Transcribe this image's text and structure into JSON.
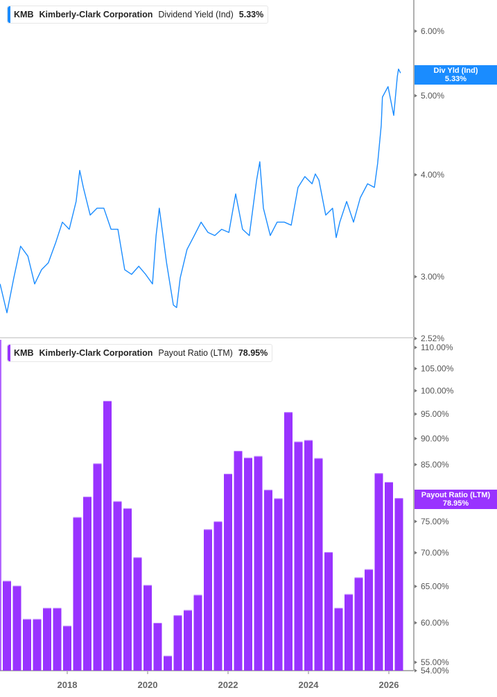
{
  "colors": {
    "yield_line": "#1a8cff",
    "payout_bars": "#9933ff",
    "axis": "#b0b0b0",
    "tick_text": "#555555"
  },
  "top_legend": {
    "ticker": "KMB",
    "company": "Kimberly-Clark Corporation",
    "metric": "Dividend Yield (Ind)",
    "value": "5.33%"
  },
  "bottom_legend": {
    "ticker": "KMB",
    "company": "Kimberly-Clark Corporation",
    "metric": "Payout Ratio (LTM)",
    "value": "78.95%"
  },
  "top_badge": {
    "label": "Div Yld (Ind)",
    "value": "5.33%"
  },
  "bottom_badge": {
    "label": "Payout Ratio (LTM)",
    "value": "78.95%"
  },
  "chart_data": [
    {
      "type": "line",
      "series_name": "Dividend Yield (Ind)",
      "y_scale": "log",
      "ylim": [
        2.52,
        6.4
      ],
      "xlim": [
        2016.33,
        2026.6
      ],
      "y_ticks": [
        {
          "v": 6.0,
          "label": "6.00%"
        },
        {
          "v": 5.0,
          "label": "5.00%"
        },
        {
          "v": 4.0,
          "label": "4.00%"
        },
        {
          "v": 3.0,
          "label": "3.00%"
        },
        {
          "v": 2.52,
          "label": "2.52%"
        }
      ],
      "grid": false,
      "points": [
        [
          2016.33,
          2.94
        ],
        [
          2016.5,
          2.71
        ],
        [
          2016.67,
          2.99
        ],
        [
          2016.84,
          3.27
        ],
        [
          2017.02,
          3.18
        ],
        [
          2017.19,
          2.94
        ],
        [
          2017.36,
          3.06
        ],
        [
          2017.53,
          3.12
        ],
        [
          2017.71,
          3.3
        ],
        [
          2017.88,
          3.5
        ],
        [
          2018.05,
          3.43
        ],
        [
          2018.22,
          3.71
        ],
        [
          2018.31,
          4.05
        ],
        [
          2018.4,
          3.86
        ],
        [
          2018.57,
          3.57
        ],
        [
          2018.74,
          3.64
        ],
        [
          2018.91,
          3.64
        ],
        [
          2019.09,
          3.43
        ],
        [
          2019.26,
          3.43
        ],
        [
          2019.43,
          3.06
        ],
        [
          2019.6,
          3.02
        ],
        [
          2019.78,
          3.09
        ],
        [
          2019.95,
          3.02
        ],
        [
          2020.12,
          2.94
        ],
        [
          2020.21,
          3.37
        ],
        [
          2020.29,
          3.64
        ],
        [
          2020.47,
          3.12
        ],
        [
          2020.64,
          2.77
        ],
        [
          2020.72,
          2.75
        ],
        [
          2020.81,
          2.99
        ],
        [
          2020.98,
          3.24
        ],
        [
          2021.16,
          3.37
        ],
        [
          2021.33,
          3.5
        ],
        [
          2021.5,
          3.4
        ],
        [
          2021.67,
          3.37
        ],
        [
          2021.84,
          3.43
        ],
        [
          2022.02,
          3.4
        ],
        [
          2022.19,
          3.79
        ],
        [
          2022.36,
          3.43
        ],
        [
          2022.53,
          3.37
        ],
        [
          2022.71,
          3.94
        ],
        [
          2022.79,
          4.15
        ],
        [
          2022.88,
          3.64
        ],
        [
          2023.05,
          3.37
        ],
        [
          2023.22,
          3.5
        ],
        [
          2023.4,
          3.5
        ],
        [
          2023.57,
          3.47
        ],
        [
          2023.74,
          3.86
        ],
        [
          2023.91,
          3.98
        ],
        [
          2024.09,
          3.9
        ],
        [
          2024.17,
          4.01
        ],
        [
          2024.26,
          3.94
        ],
        [
          2024.43,
          3.57
        ],
        [
          2024.6,
          3.64
        ],
        [
          2024.69,
          3.35
        ],
        [
          2024.78,
          3.5
        ],
        [
          2024.95,
          3.71
        ],
        [
          2025.12,
          3.5
        ],
        [
          2025.29,
          3.75
        ],
        [
          2025.47,
          3.9
        ],
        [
          2025.64,
          3.86
        ],
        [
          2025.72,
          4.13
        ],
        [
          2025.81,
          4.6
        ],
        [
          2025.84,
          4.98
        ],
        [
          2025.98,
          5.13
        ],
        [
          2026.12,
          4.73
        ],
        [
          2026.21,
          5.28
        ],
        [
          2026.24,
          5.39
        ],
        [
          2026.29,
          5.33
        ]
      ]
    },
    {
      "type": "bar",
      "series_name": "Payout Ratio (LTM)",
      "y_scale": "log",
      "ylim": [
        54,
        112
      ],
      "xlim": [
        2016.33,
        2026.6
      ],
      "x_ticks": [
        {
          "v": 2018,
          "label": "2018"
        },
        {
          "v": 2020,
          "label": "2020"
        },
        {
          "v": 2022,
          "label": "2022"
        },
        {
          "v": 2024,
          "label": "2024"
        },
        {
          "v": 2026,
          "label": "2026"
        }
      ],
      "y_ticks": [
        {
          "v": 110,
          "label": "110.00%"
        },
        {
          "v": 105,
          "label": "105.00%"
        },
        {
          "v": 100,
          "label": "100.00%"
        },
        {
          "v": 95,
          "label": "95.00%"
        },
        {
          "v": 90,
          "label": "90.00%"
        },
        {
          "v": 85,
          "label": "85.00%"
        },
        {
          "v": 75,
          "label": "75.00%"
        },
        {
          "v": 70,
          "label": "70.00%"
        },
        {
          "v": 65,
          "label": "65.00%"
        },
        {
          "v": 60,
          "label": "60.00%"
        },
        {
          "v": 55,
          "label": "55.00%"
        },
        {
          "v": 54,
          "label": "54.00%"
        }
      ],
      "grid": false,
      "first_period": 2016.5,
      "period_years": 0.25,
      "values": [
        65.8,
        65.1,
        60.5,
        60.5,
        62.0,
        62.0,
        59.6,
        75.7,
        79.2,
        85.2,
        97.8,
        78.4,
        77.2,
        69.3,
        65.2,
        60.0,
        55.8,
        61.0,
        61.7,
        63.8,
        73.7,
        75.0,
        83.3,
        87.6,
        86.3,
        86.6,
        80.4,
        78.9,
        95.4,
        89.4,
        89.7,
        86.2,
        70.1,
        62.0,
        63.9,
        66.3,
        67.5,
        83.4,
        81.8,
        78.95
      ]
    }
  ]
}
